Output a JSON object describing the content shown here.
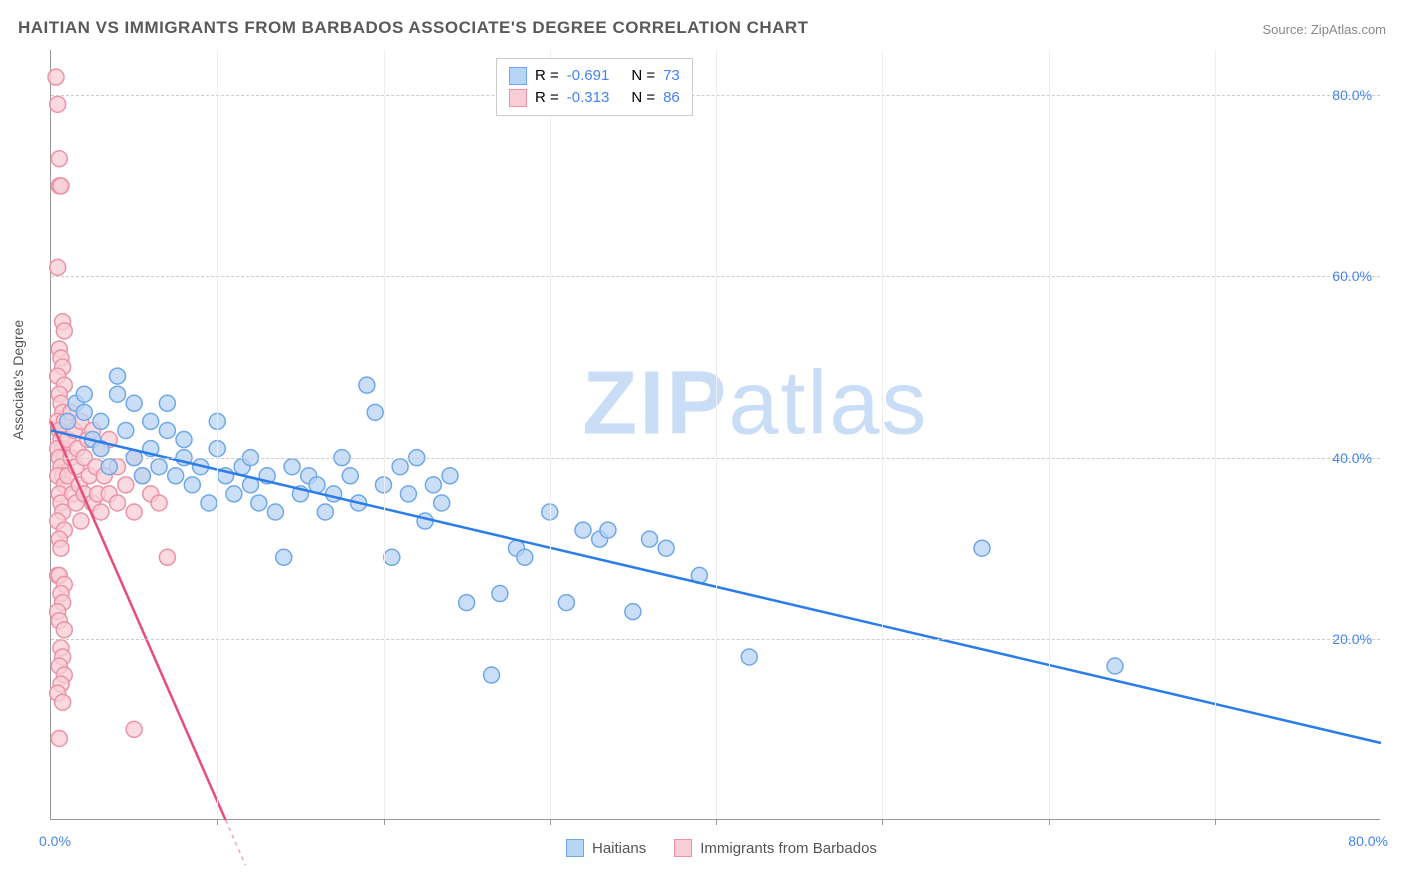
{
  "title": "HAITIAN VS IMMIGRANTS FROM BARBADOS ASSOCIATE'S DEGREE CORRELATION CHART",
  "source": "Source: ZipAtlas.com",
  "yaxis_label": "Associate's Degree",
  "watermark_a": "ZIP",
  "watermark_b": "atlas",
  "chart": {
    "type": "scatter",
    "xlim": [
      0,
      80
    ],
    "ylim": [
      0,
      85
    ],
    "yticks": [
      20,
      40,
      60,
      80
    ],
    "ytick_labels": [
      "20.0%",
      "40.0%",
      "60.0%",
      "80.0%"
    ],
    "xtick_positions": [
      0,
      10,
      20,
      30,
      40,
      50,
      60,
      70,
      80
    ],
    "x_origin_label": "0.0%",
    "x_end_label": "80.0%",
    "grid_color": "#cccccc",
    "background_color": "#ffffff",
    "series": [
      {
        "name": "Haitians",
        "R_label": "R = ",
        "R_value": "-0.691",
        "N_label": "N = ",
        "N_value": "73",
        "marker_fill": "#b8d4f4",
        "marker_stroke": "#6fa8e8",
        "marker_radius": 8,
        "line_color": "#2b7de9",
        "line_width": 2.5,
        "swatch_fill": "#b8d4f4",
        "swatch_border": "#6fa8e8",
        "trendline": {
          "x1": 0,
          "y1": 43.0,
          "x2": 80,
          "y2": 8.5
        },
        "points": [
          [
            1,
            44
          ],
          [
            1.5,
            46
          ],
          [
            2,
            47
          ],
          [
            2,
            45
          ],
          [
            2.5,
            42
          ],
          [
            3,
            41
          ],
          [
            3,
            44
          ],
          [
            3.5,
            39
          ],
          [
            4,
            49
          ],
          [
            4,
            47
          ],
          [
            4.5,
            43
          ],
          [
            5,
            46
          ],
          [
            5,
            40
          ],
          [
            5.5,
            38
          ],
          [
            6,
            44
          ],
          [
            6,
            41
          ],
          [
            6.5,
            39
          ],
          [
            7,
            43
          ],
          [
            7,
            46
          ],
          [
            7.5,
            38
          ],
          [
            8,
            40
          ],
          [
            8,
            42
          ],
          [
            8.5,
            37
          ],
          [
            9,
            39
          ],
          [
            9.5,
            35
          ],
          [
            10,
            44
          ],
          [
            10,
            41
          ],
          [
            10.5,
            38
          ],
          [
            11,
            36
          ],
          [
            11.5,
            39
          ],
          [
            12,
            37
          ],
          [
            12,
            40
          ],
          [
            12.5,
            35
          ],
          [
            13,
            38
          ],
          [
            13.5,
            34
          ],
          [
            14,
            29
          ],
          [
            14.5,
            39
          ],
          [
            15,
            36
          ],
          [
            15.5,
            38
          ],
          [
            16,
            37
          ],
          [
            16.5,
            34
          ],
          [
            17,
            36
          ],
          [
            17.5,
            40
          ],
          [
            18,
            38
          ],
          [
            18.5,
            35
          ],
          [
            19,
            48
          ],
          [
            19.5,
            45
          ],
          [
            20,
            37
          ],
          [
            20.5,
            29
          ],
          [
            21,
            39
          ],
          [
            21.5,
            36
          ],
          [
            22,
            40
          ],
          [
            22.5,
            33
          ],
          [
            23,
            37
          ],
          [
            23.5,
            35
          ],
          [
            24,
            38
          ],
          [
            25,
            24
          ],
          [
            26.5,
            16
          ],
          [
            27,
            25
          ],
          [
            28,
            30
          ],
          [
            28.5,
            29
          ],
          [
            30,
            34
          ],
          [
            31,
            24
          ],
          [
            32,
            32
          ],
          [
            33,
            31
          ],
          [
            33.5,
            32
          ],
          [
            35,
            23
          ],
          [
            36,
            31
          ],
          [
            37,
            30
          ],
          [
            39,
            27
          ],
          [
            42,
            18
          ],
          [
            56,
            30
          ],
          [
            64,
            17
          ]
        ]
      },
      {
        "name": "Immigrants from Barbados",
        "R_label": "R = ",
        "R_value": "-0.313",
        "N_label": "N = ",
        "N_value": "86",
        "marker_fill": "#f8cdd6",
        "marker_stroke": "#ec92a6",
        "marker_radius": 8,
        "line_color": "#e84c78",
        "line_width": 2.5,
        "swatch_fill": "#f8cdd6",
        "swatch_border": "#ec92a6",
        "trendline": {
          "x1": 0,
          "y1": 44.0,
          "x2": 10.5,
          "y2": 0
        },
        "points": [
          [
            0.3,
            82
          ],
          [
            0.4,
            79
          ],
          [
            0.5,
            73
          ],
          [
            0.5,
            70
          ],
          [
            0.6,
            70
          ],
          [
            0.4,
            61
          ],
          [
            0.7,
            55
          ],
          [
            0.8,
            54
          ],
          [
            0.5,
            52
          ],
          [
            0.6,
            51
          ],
          [
            0.7,
            50
          ],
          [
            0.4,
            49
          ],
          [
            0.8,
            48
          ],
          [
            0.5,
            47
          ],
          [
            0.6,
            46
          ],
          [
            0.7,
            45
          ],
          [
            0.4,
            44
          ],
          [
            0.8,
            44
          ],
          [
            0.5,
            43
          ],
          [
            0.6,
            42
          ],
          [
            0.7,
            41
          ],
          [
            0.4,
            41
          ],
          [
            0.8,
            40
          ],
          [
            0.5,
            40
          ],
          [
            0.6,
            39
          ],
          [
            0.7,
            38
          ],
          [
            0.4,
            38
          ],
          [
            0.8,
            37
          ],
          [
            0.5,
            36
          ],
          [
            0.6,
            35
          ],
          [
            0.7,
            34
          ],
          [
            0.4,
            33
          ],
          [
            0.8,
            32
          ],
          [
            0.5,
            31
          ],
          [
            0.6,
            30
          ],
          [
            0.4,
            27
          ],
          [
            0.5,
            27
          ],
          [
            0.8,
            26
          ],
          [
            0.6,
            25
          ],
          [
            0.7,
            24
          ],
          [
            0.4,
            23
          ],
          [
            0.5,
            22
          ],
          [
            0.8,
            21
          ],
          [
            0.6,
            19
          ],
          [
            0.7,
            18
          ],
          [
            0.5,
            17
          ],
          [
            0.8,
            16
          ],
          [
            0.6,
            15
          ],
          [
            0.4,
            14
          ],
          [
            0.7,
            13
          ],
          [
            0.5,
            9
          ],
          [
            1.0,
            42
          ],
          [
            1.0,
            38
          ],
          [
            1.2,
            45
          ],
          [
            1.2,
            40
          ],
          [
            1.3,
            36
          ],
          [
            1.4,
            43
          ],
          [
            1.5,
            39
          ],
          [
            1.5,
            35
          ],
          [
            1.6,
            41
          ],
          [
            1.7,
            37
          ],
          [
            1.8,
            44
          ],
          [
            1.8,
            33
          ],
          [
            2.0,
            40
          ],
          [
            2.0,
            36
          ],
          [
            2.2,
            42
          ],
          [
            2.3,
            38
          ],
          [
            2.5,
            35
          ],
          [
            2.5,
            43
          ],
          [
            2.7,
            39
          ],
          [
            2.8,
            36
          ],
          [
            3.0,
            41
          ],
          [
            3.0,
            34
          ],
          [
            3.2,
            38
          ],
          [
            3.5,
            36
          ],
          [
            3.5,
            42
          ],
          [
            4.0,
            39
          ],
          [
            4.0,
            35
          ],
          [
            4.5,
            37
          ],
          [
            5.0,
            40
          ],
          [
            5.0,
            34
          ],
          [
            5.5,
            38
          ],
          [
            6.0,
            36
          ],
          [
            6.5,
            35
          ],
          [
            7.0,
            29
          ],
          [
            5.0,
            10
          ]
        ]
      }
    ]
  },
  "legend_bottom": {
    "items": [
      {
        "label": "Haitians",
        "fill": "#b8d4f4",
        "border": "#6fa8e8"
      },
      {
        "label": "Immigrants from Barbados",
        "fill": "#f8cdd6",
        "border": "#ec92a6"
      }
    ]
  }
}
